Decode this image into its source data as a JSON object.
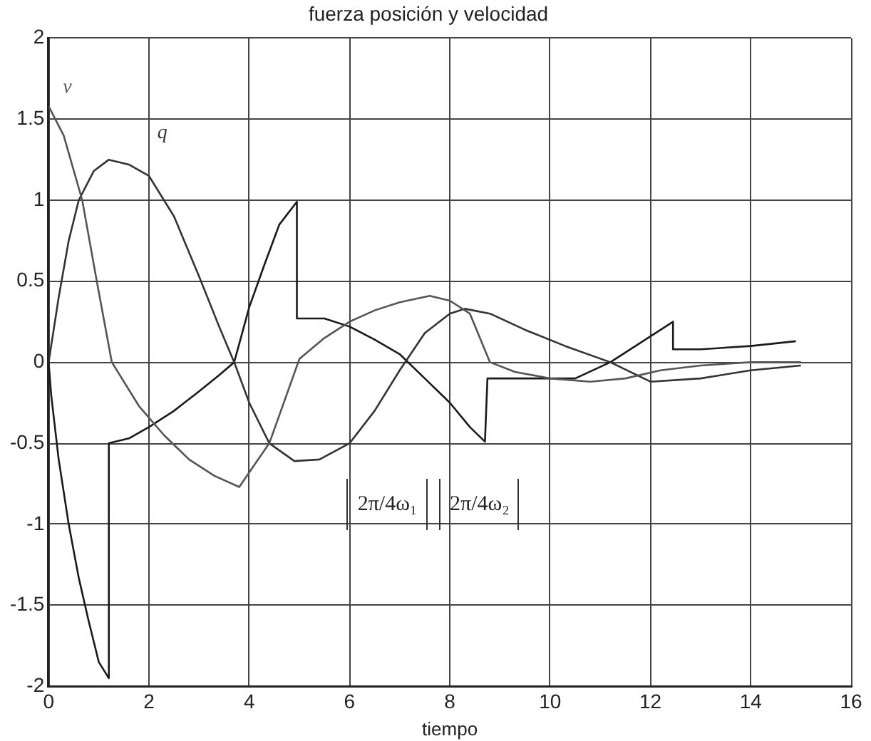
{
  "chart_data": {
    "type": "line",
    "title": "fuerza posición y velocidad",
    "xlabel": "tiempo",
    "xlim": [
      0,
      16
    ],
    "xticks": [
      0,
      2,
      4,
      6,
      8,
      10,
      12,
      14,
      16
    ],
    "ylim": [
      -2,
      2
    ],
    "yticks": [
      -2,
      -1.5,
      -1,
      -0.5,
      0,
      0.5,
      1,
      1.5,
      2
    ],
    "grid": true,
    "legend": false,
    "marker": "none",
    "line_style": "solid",
    "annotations": [
      "2π/4ω₁",
      "2π/4ω₂"
    ],
    "series": [
      {
        "name": "ν",
        "color": "#555555",
        "x": [
          0,
          0.3,
          0.67,
          0.96,
          1.26,
          1.8,
          2.3,
          2.8,
          3.3,
          3.8,
          4.4,
          5.0,
          5.5,
          6.0,
          6.5,
          7.0,
          7.6,
          8.0,
          8.4,
          8.8,
          9.3,
          10,
          10.8,
          11.5,
          12.2,
          13,
          14,
          15
        ],
        "values": [
          1.58,
          1.4,
          1.0,
          0.5,
          0,
          -0.27,
          -0.45,
          -0.6,
          -0.7,
          -0.77,
          -0.5,
          0.02,
          0.15,
          0.25,
          0.32,
          0.37,
          0.41,
          0.38,
          0.3,
          0,
          -0.06,
          -0.1,
          -0.12,
          -0.1,
          -0.05,
          -0.02,
          0,
          0
        ]
      },
      {
        "name": "q",
        "color": "#333333",
        "x": [
          0,
          0.2,
          0.4,
          0.6,
          0.9,
          1.2,
          1.6,
          2.0,
          2.5,
          3.0,
          3.4,
          3.7,
          4.0,
          4.4,
          4.9,
          5.4,
          6.0,
          6.5,
          7.0,
          7.5,
          8.0,
          8.3,
          8.8,
          9.5,
          10.3,
          11.2,
          12,
          13,
          14,
          15
        ],
        "values": [
          0,
          0.4,
          0.75,
          1.0,
          1.18,
          1.25,
          1.22,
          1.15,
          0.9,
          0.53,
          0.22,
          0,
          -0.25,
          -0.5,
          -0.61,
          -0.6,
          -0.5,
          -0.3,
          -0.05,
          0.18,
          0.3,
          0.33,
          0.3,
          0.2,
          0.1,
          0,
          -0.12,
          -0.1,
          -0.05,
          -0.02
        ]
      },
      {
        "color": "#1a1a1a",
        "x": [
          0,
          0.05,
          0.2,
          0.4,
          0.6,
          0.8,
          1.0,
          1.2,
          1.2,
          1.6,
          2.0,
          2.5,
          3.0,
          3.4,
          3.7,
          4.0,
          4.3,
          4.6,
          4.95,
          4.95,
          5.5,
          6.0,
          6.5,
          7.0,
          7.5,
          8.0,
          8.4,
          8.7,
          8.75,
          9.5,
          10.5,
          11.2,
          11.8,
          12.45,
          12.45,
          13,
          14,
          14.9
        ],
        "values": [
          0,
          -0.2,
          -0.6,
          -1.0,
          -1.33,
          -1.6,
          -1.85,
          -1.95,
          -0.5,
          -0.47,
          -0.4,
          -0.3,
          -0.18,
          -0.08,
          0,
          0.34,
          0.6,
          0.85,
          0.99,
          0.27,
          0.27,
          0.22,
          0.14,
          0.05,
          -0.1,
          -0.25,
          -0.4,
          -0.49,
          -0.1,
          -0.1,
          -0.1,
          0,
          0.12,
          0.25,
          0.08,
          0.08,
          0.1,
          0.13
        ]
      }
    ]
  }
}
